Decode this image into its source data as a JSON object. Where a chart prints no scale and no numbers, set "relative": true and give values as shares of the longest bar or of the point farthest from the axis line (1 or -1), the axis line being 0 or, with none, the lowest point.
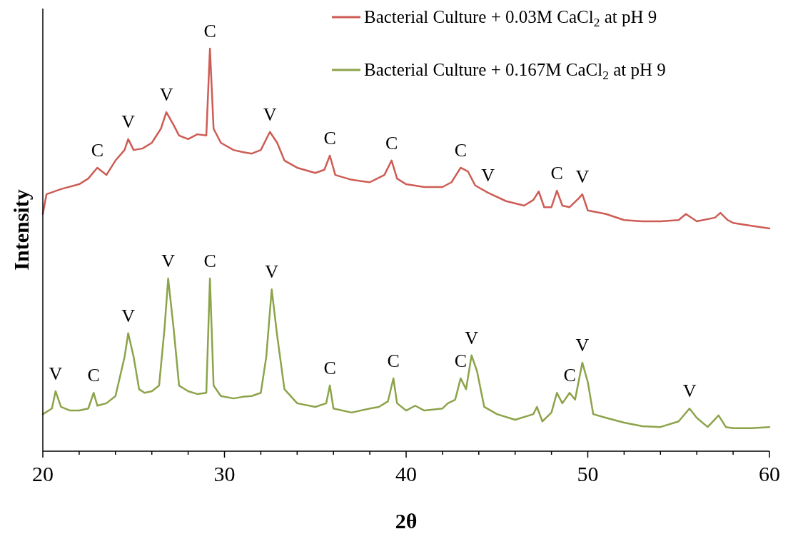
{
  "chart_data": {
    "type": "line",
    "relative": true,
    "xlabel": "2θ",
    "ylabel": "Intensity",
    "legend": "top right",
    "grid": false,
    "marker": "none",
    "line_style": "solid",
    "xlim": [
      20,
      60
    ],
    "xticks": [
      20,
      {
        "value": 22,
        "label": null
      },
      {
        "value": 24,
        "label": null
      },
      {
        "value": 26,
        "label": null
      },
      {
        "value": 28,
        "label": null
      },
      30,
      {
        "value": 32,
        "label": null
      },
      {
        "value": 34,
        "label": null
      },
      {
        "value": 36,
        "label": null
      },
      {
        "value": 38,
        "label": null
      },
      40,
      {
        "value": 42,
        "label": null
      },
      {
        "value": 44,
        "label": null
      },
      {
        "value": 46,
        "label": null
      },
      {
        "value": 48,
        "label": null
      },
      50,
      {
        "value": 52,
        "label": null
      },
      {
        "value": 54,
        "label": null
      },
      {
        "value": 56,
        "label": null
      },
      {
        "value": 58,
        "label": null
      },
      60
    ],
    "series": [
      {
        "name": "Bacterial Culture + 0.03M CaCl$_{2}$ at pH 9",
        "color": "#cd5c54",
        "x": [
          20,
          20.2,
          21,
          22,
          22.5,
          23,
          23.5,
          24,
          24.5,
          24.7,
          25,
          25.5,
          26,
          26.5,
          26.8,
          27.2,
          27.5,
          28,
          28.5,
          29,
          29.2,
          29.4,
          29.8,
          30.5,
          31,
          31.5,
          32,
          32.5,
          32.9,
          33.3,
          34,
          35,
          35.5,
          35.8,
          36.1,
          37,
          38,
          38.8,
          39.2,
          39.5,
          40,
          41,
          42,
          42.5,
          43,
          43.4,
          43.8,
          44.5,
          45.5,
          46.5,
          47,
          47.3,
          47.6,
          48,
          48.3,
          48.6,
          49,
          49.5,
          49.7,
          50,
          51,
          52,
          53,
          54,
          55,
          55.4,
          56,
          57,
          57.3,
          57.7,
          58,
          59,
          60
        ],
        "values": [
          0.589,
          0.638,
          0.651,
          0.663,
          0.677,
          0.704,
          0.686,
          0.722,
          0.748,
          0.775,
          0.748,
          0.752,
          0.766,
          0.801,
          0.842,
          0.81,
          0.784,
          0.775,
          0.787,
          0.784,
          1,
          0.801,
          0.766,
          0.748,
          0.743,
          0.739,
          0.748,
          0.793,
          0.766,
          0.722,
          0.704,
          0.691,
          0.699,
          0.734,
          0.686,
          0.674,
          0.668,
          0.686,
          0.722,
          0.677,
          0.663,
          0.656,
          0.656,
          0.668,
          0.704,
          0.695,
          0.66,
          0.642,
          0.621,
          0.61,
          0.624,
          0.645,
          0.606,
          0.606,
          0.647,
          0.61,
          0.606,
          0.628,
          0.638,
          0.598,
          0.589,
          0.574,
          0.571,
          0.571,
          0.574,
          0.589,
          0.571,
          0.58,
          0.592,
          0.574,
          0.567,
          0.56,
          0.553
        ]
      },
      {
        "name": "Bacterial Culture + 0.167M CaCl$_{2}$ at pH 9",
        "color": "#8ca34a",
        "x": [
          20,
          20.5,
          20.7,
          21,
          21.5,
          22,
          22.5,
          22.8,
          23,
          23.5,
          24,
          24.5,
          24.7,
          25,
          25.3,
          25.6,
          26,
          26.4,
          26.7,
          26.9,
          27.2,
          27.5,
          28,
          28.5,
          29,
          29.2,
          29.4,
          29.8,
          30.5,
          31,
          31.5,
          32,
          32.3,
          32.6,
          32.9,
          33.3,
          34,
          35,
          35.6,
          35.8,
          36,
          37,
          38,
          38.5,
          39,
          39.3,
          39.5,
          40,
          40.5,
          41,
          42,
          42.3,
          42.7,
          43,
          43.3,
          43.6,
          43.9,
          44.3,
          45,
          46,
          47,
          47.2,
          47.5,
          48,
          48.3,
          48.6,
          49,
          49.3,
          49.7,
          50,
          50.3,
          51,
          52,
          53,
          54,
          55,
          55.6,
          56,
          56.6,
          57.2,
          57.6,
          58,
          59,
          60
        ],
        "values": [
          0.092,
          0.106,
          0.149,
          0.11,
          0.101,
          0.101,
          0.106,
          0.145,
          0.113,
          0.119,
          0.137,
          0.234,
          0.293,
          0.234,
          0.154,
          0.145,
          0.149,
          0.163,
          0.305,
          0.429,
          0.305,
          0.163,
          0.149,
          0.142,
          0.145,
          0.429,
          0.163,
          0.137,
          0.131,
          0.135,
          0.137,
          0.145,
          0.234,
          0.402,
          0.287,
          0.154,
          0.119,
          0.11,
          0.119,
          0.163,
          0.106,
          0.096,
          0.106,
          0.11,
          0.124,
          0.181,
          0.119,
          0.101,
          0.113,
          0.101,
          0.106,
          0.119,
          0.128,
          0.181,
          0.154,
          0.238,
          0.199,
          0.11,
          0.092,
          0.078,
          0.092,
          0.11,
          0.074,
          0.096,
          0.145,
          0.119,
          0.145,
          0.128,
          0.22,
          0.172,
          0.092,
          0.083,
          0.071,
          0.062,
          0.06,
          0.074,
          0.106,
          0.083,
          0.06,
          0.089,
          0.06,
          0.057,
          0.057,
          0.06
        ]
      }
    ],
    "annotations": [
      {
        "text": "C",
        "x": 23,
        "y": 0.704
      },
      {
        "text": "V",
        "x": 24.7,
        "y": 0.775
      },
      {
        "text": "V",
        "x": 26.8,
        "y": 0.842
      },
      {
        "text": "C",
        "x": 29.2,
        "y": 1
      },
      {
        "text": "V",
        "x": 32.5,
        "y": 0.793
      },
      {
        "text": "C",
        "x": 35.8,
        "y": 0.734
      },
      {
        "text": "C",
        "x": 39.2,
        "y": 0.722
      },
      {
        "text": "C",
        "x": 43,
        "y": 0.704
      },
      {
        "text": "V",
        "x": 44.5,
        "y": 0.642
      },
      {
        "text": "C",
        "x": 48.3,
        "y": 0.647
      },
      {
        "text": "V",
        "x": 49.7,
        "y": 0.638
      },
      {
        "text": "V",
        "x": 20.7,
        "y": 0.149
      },
      {
        "text": "C",
        "x": 22.8,
        "y": 0.145
      },
      {
        "text": "V",
        "x": 24.7,
        "y": 0.293
      },
      {
        "text": "V",
        "x": 26.9,
        "y": 0.429
      },
      {
        "text": "C",
        "x": 29.2,
        "y": 0.429
      },
      {
        "text": "V",
        "x": 32.6,
        "y": 0.402
      },
      {
        "text": "C",
        "x": 35.8,
        "y": 0.163
      },
      {
        "text": "C",
        "x": 39.3,
        "y": 0.181
      },
      {
        "text": "C",
        "x": 43,
        "y": 0.181
      },
      {
        "text": "V",
        "x": 43.6,
        "y": 0.238
      },
      {
        "text": "C",
        "x": 49,
        "y": 0.145
      },
      {
        "text": "V",
        "x": 49.7,
        "y": 0.22
      },
      {
        "text": "V",
        "x": 55.6,
        "y": 0.106
      }
    ]
  }
}
